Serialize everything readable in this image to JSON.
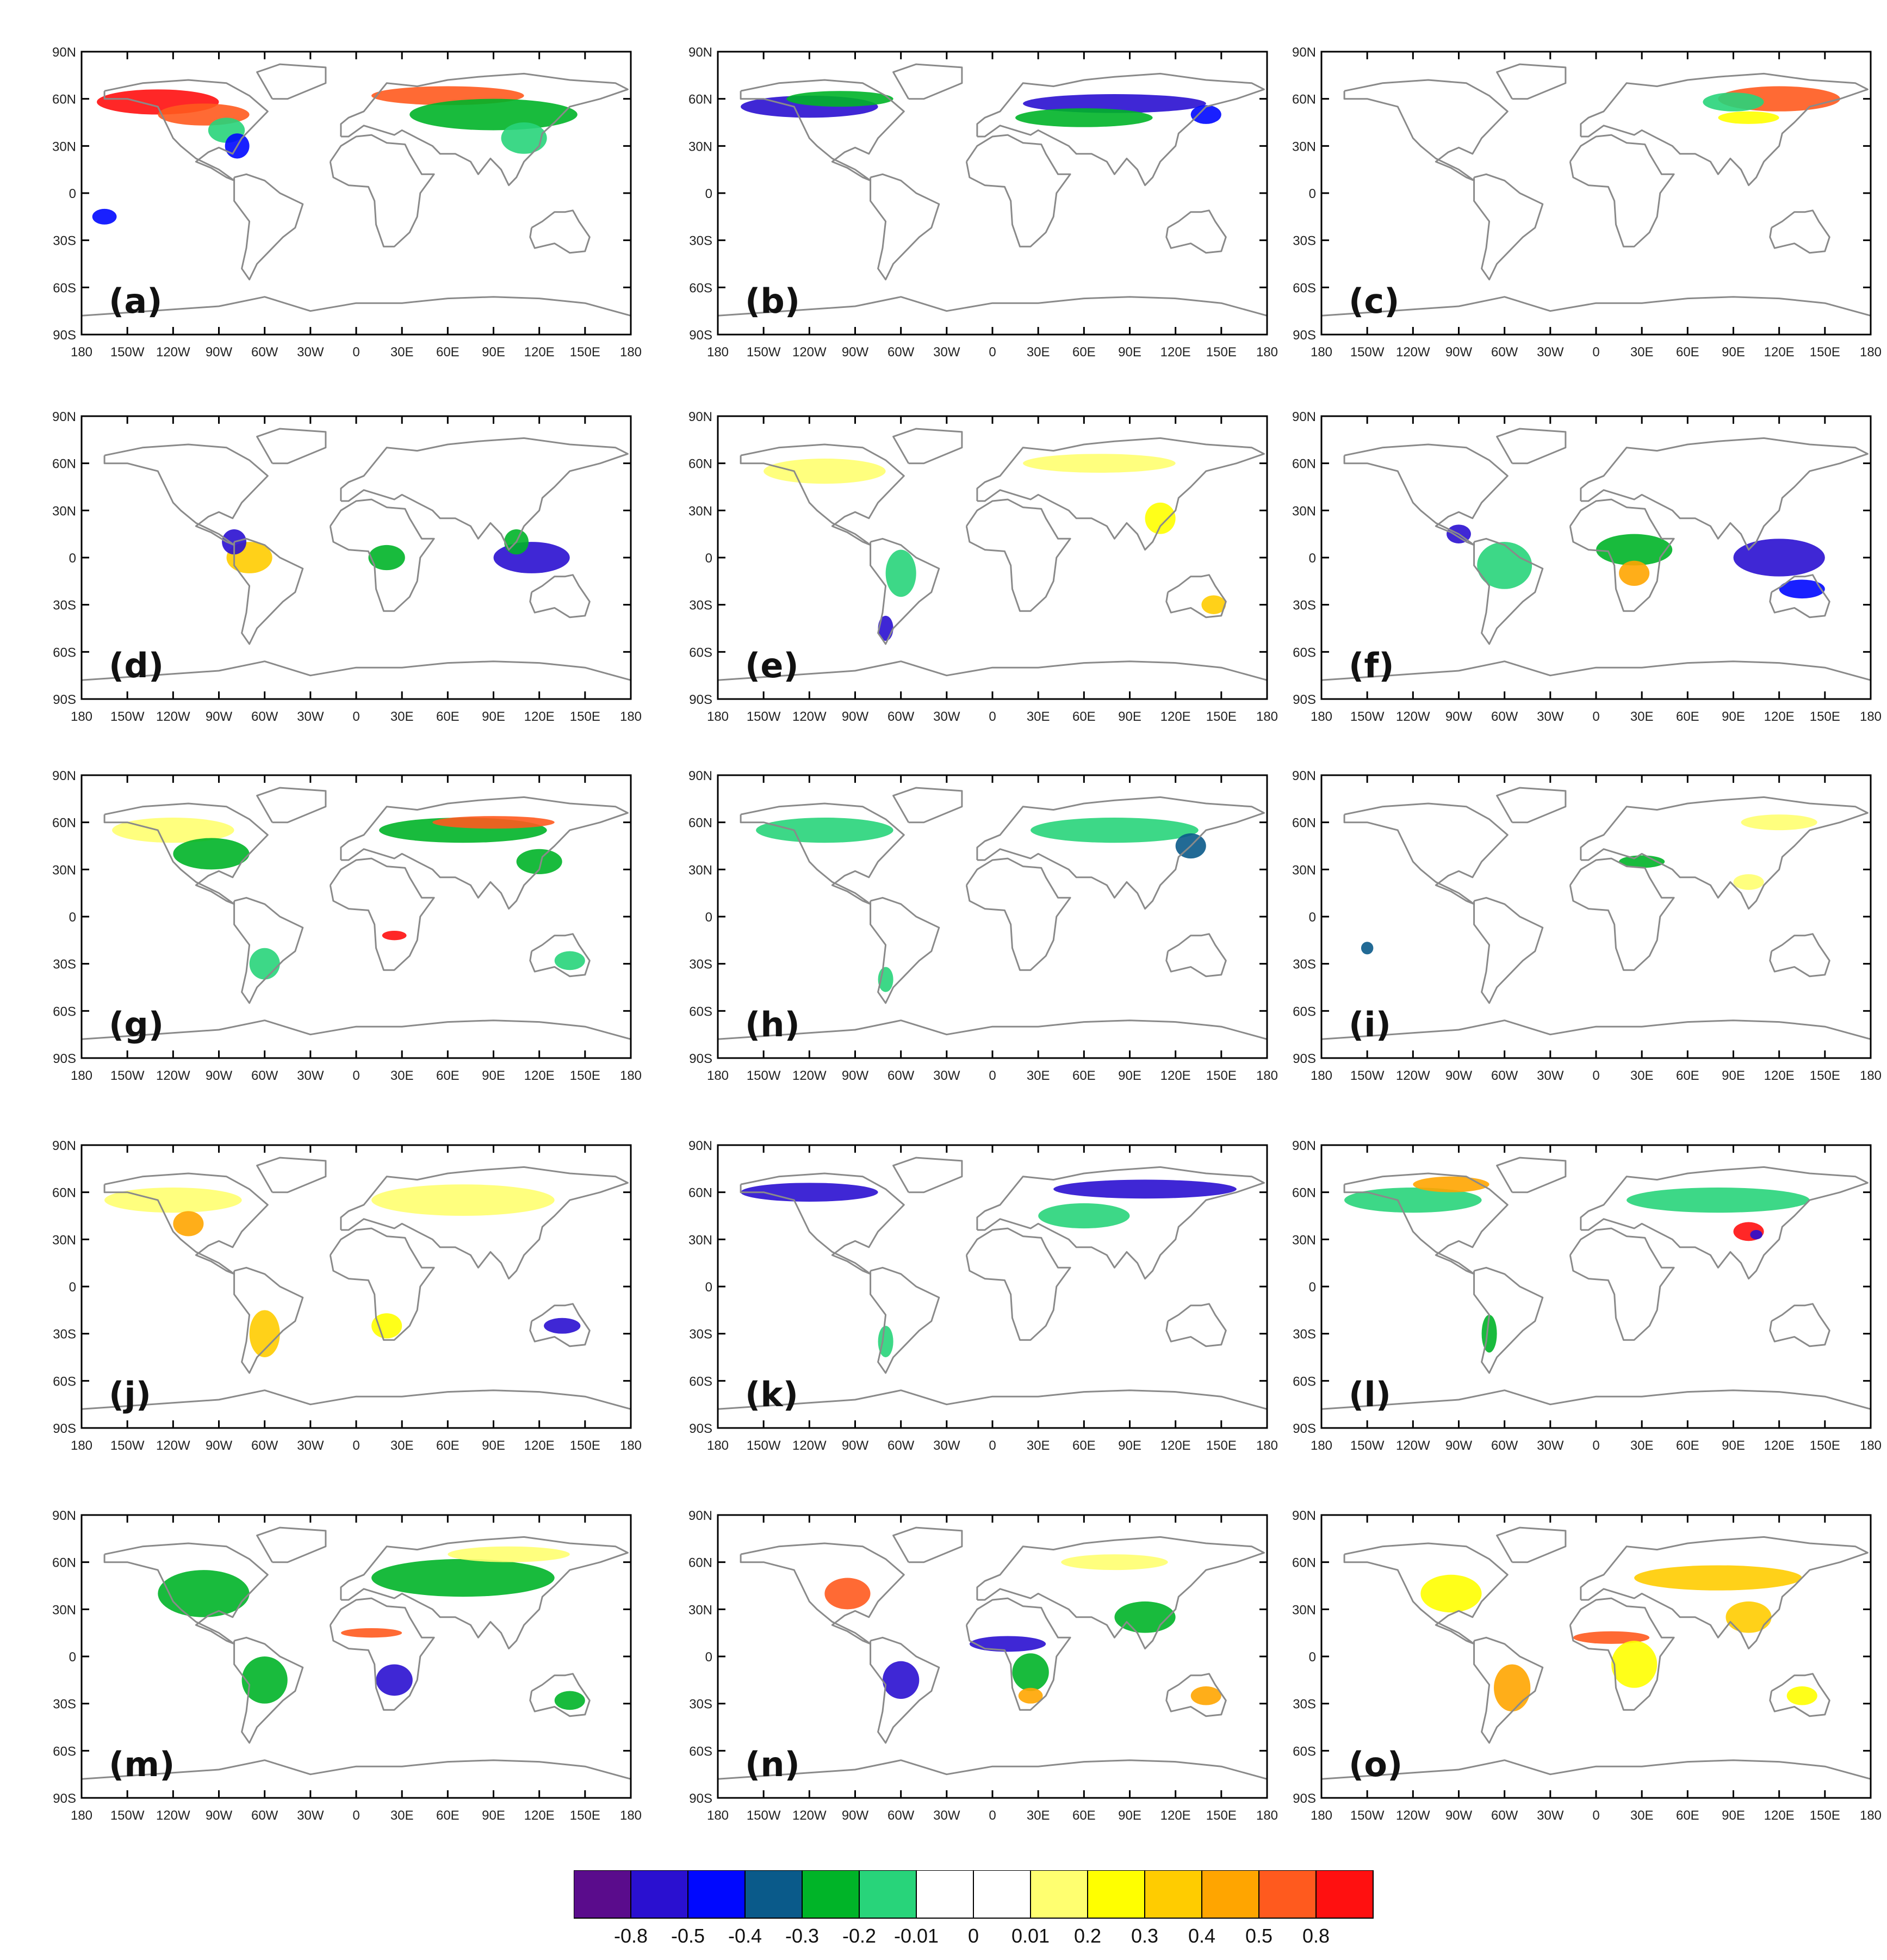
{
  "panels": [
    {
      "label": "(a)",
      "blobs": [
        {
          "lon": -130,
          "lat": 58,
          "rx": 40,
          "ry": 8,
          "c": 13
        },
        {
          "lon": -100,
          "lat": 50,
          "rx": 30,
          "ry": 7,
          "c": 12
        },
        {
          "lon": -85,
          "lat": 40,
          "rx": 12,
          "ry": 8,
          "c": 5
        },
        {
          "lon": -78,
          "lat": 30,
          "rx": 8,
          "ry": 8,
          "c": 2
        },
        {
          "lon": 60,
          "lat": 62,
          "rx": 50,
          "ry": 6,
          "c": 12
        },
        {
          "lon": 90,
          "lat": 50,
          "rx": 55,
          "ry": 10,
          "c": 4
        },
        {
          "lon": 110,
          "lat": 35,
          "rx": 15,
          "ry": 10,
          "c": 5
        },
        {
          "lon": -165,
          "lat": -15,
          "rx": 8,
          "ry": 5,
          "c": 2
        }
      ]
    },
    {
      "label": "(b)",
      "blobs": [
        {
          "lon": -120,
          "lat": 55,
          "rx": 45,
          "ry": 7,
          "c": 1
        },
        {
          "lon": -100,
          "lat": 60,
          "rx": 35,
          "ry": 5,
          "c": 4
        },
        {
          "lon": 80,
          "lat": 57,
          "rx": 60,
          "ry": 6,
          "c": 1
        },
        {
          "lon": 60,
          "lat": 48,
          "rx": 45,
          "ry": 6,
          "c": 4
        },
        {
          "lon": 140,
          "lat": 50,
          "rx": 10,
          "ry": 6,
          "c": 2
        }
      ]
    },
    {
      "label": "(c)",
      "blobs": [
        {
          "lon": 120,
          "lat": 60,
          "rx": 40,
          "ry": 8,
          "c": 12
        },
        {
          "lon": 90,
          "lat": 58,
          "rx": 20,
          "ry": 6,
          "c": 5
        },
        {
          "lon": 100,
          "lat": 48,
          "rx": 20,
          "ry": 4,
          "c": 9
        }
      ]
    },
    {
      "label": "(d)",
      "blobs": [
        {
          "lon": -70,
          "lat": 0,
          "rx": 15,
          "ry": 10,
          "c": 10
        },
        {
          "lon": -80,
          "lat": 10,
          "rx": 8,
          "ry": 8,
          "c": 1
        },
        {
          "lon": 20,
          "lat": 0,
          "rx": 12,
          "ry": 8,
          "c": 4
        },
        {
          "lon": 115,
          "lat": 0,
          "rx": 25,
          "ry": 10,
          "c": 1
        },
        {
          "lon": 105,
          "lat": 10,
          "rx": 8,
          "ry": 8,
          "c": 4
        }
      ]
    },
    {
      "label": "(e)",
      "blobs": [
        {
          "lon": -110,
          "lat": 55,
          "rx": 40,
          "ry": 8,
          "c": 8
        },
        {
          "lon": 70,
          "lat": 60,
          "rx": 50,
          "ry": 6,
          "c": 8
        },
        {
          "lon": 110,
          "lat": 25,
          "rx": 10,
          "ry": 10,
          "c": 9
        },
        {
          "lon": -60,
          "lat": -10,
          "rx": 10,
          "ry": 15,
          "c": 5
        },
        {
          "lon": -70,
          "lat": -45,
          "rx": 5,
          "ry": 8,
          "c": 1
        },
        {
          "lon": 145,
          "lat": -30,
          "rx": 8,
          "ry": 6,
          "c": 10
        }
      ]
    },
    {
      "label": "(f)",
      "blobs": [
        {
          "lon": -60,
          "lat": -5,
          "rx": 18,
          "ry": 15,
          "c": 5
        },
        {
          "lon": 25,
          "lat": 5,
          "rx": 25,
          "ry": 10,
          "c": 4
        },
        {
          "lon": 25,
          "lat": -10,
          "rx": 10,
          "ry": 8,
          "c": 11
        },
        {
          "lon": 120,
          "lat": 0,
          "rx": 30,
          "ry": 12,
          "c": 1
        },
        {
          "lon": 135,
          "lat": -20,
          "rx": 15,
          "ry": 6,
          "c": 2
        },
        {
          "lon": -90,
          "lat": 15,
          "rx": 8,
          "ry": 6,
          "c": 1
        }
      ]
    },
    {
      "label": "(g)",
      "blobs": [
        {
          "lon": -120,
          "lat": 55,
          "rx": 40,
          "ry": 8,
          "c": 8
        },
        {
          "lon": -95,
          "lat": 40,
          "rx": 25,
          "ry": 10,
          "c": 4
        },
        {
          "lon": 70,
          "lat": 55,
          "rx": 55,
          "ry": 8,
          "c": 4
        },
        {
          "lon": 90,
          "lat": 60,
          "rx": 40,
          "ry": 4,
          "c": 12
        },
        {
          "lon": 120,
          "lat": 35,
          "rx": 15,
          "ry": 8,
          "c": 4
        },
        {
          "lon": 25,
          "lat": -12,
          "rx": 8,
          "ry": 3,
          "c": 13
        },
        {
          "lon": -60,
          "lat": -30,
          "rx": 10,
          "ry": 10,
          "c": 5
        },
        {
          "lon": 140,
          "lat": -28,
          "rx": 10,
          "ry": 6,
          "c": 5
        }
      ]
    },
    {
      "label": "(h)",
      "blobs": [
        {
          "lon": -110,
          "lat": 55,
          "rx": 45,
          "ry": 8,
          "c": 5
        },
        {
          "lon": 80,
          "lat": 55,
          "rx": 55,
          "ry": 8,
          "c": 5
        },
        {
          "lon": 130,
          "lat": 45,
          "rx": 10,
          "ry": 8,
          "c": 3
        },
        {
          "lon": -70,
          "lat": -40,
          "rx": 5,
          "ry": 8,
          "c": 5
        }
      ]
    },
    {
      "label": "(i)",
      "blobs": [
        {
          "lon": 120,
          "lat": 60,
          "rx": 25,
          "ry": 5,
          "c": 8
        },
        {
          "lon": 100,
          "lat": 22,
          "rx": 10,
          "ry": 5,
          "c": 8
        },
        {
          "lon": 30,
          "lat": 35,
          "rx": 15,
          "ry": 4,
          "c": 4
        },
        {
          "lon": -150,
          "lat": -20,
          "rx": 4,
          "ry": 4,
          "c": 3
        }
      ]
    },
    {
      "label": "(j)",
      "blobs": [
        {
          "lon": -120,
          "lat": 55,
          "rx": 45,
          "ry": 8,
          "c": 8
        },
        {
          "lon": -110,
          "lat": 40,
          "rx": 10,
          "ry": 8,
          "c": 11
        },
        {
          "lon": 70,
          "lat": 55,
          "rx": 60,
          "ry": 10,
          "c": 8
        },
        {
          "lon": -60,
          "lat": -30,
          "rx": 10,
          "ry": 15,
          "c": 10
        },
        {
          "lon": 20,
          "lat": -25,
          "rx": 10,
          "ry": 8,
          "c": 9
        },
        {
          "lon": 135,
          "lat": -25,
          "rx": 12,
          "ry": 5,
          "c": 1
        }
      ]
    },
    {
      "label": "(k)",
      "blobs": [
        {
          "lon": -120,
          "lat": 60,
          "rx": 45,
          "ry": 6,
          "c": 1
        },
        {
          "lon": 100,
          "lat": 62,
          "rx": 60,
          "ry": 6,
          "c": 1
        },
        {
          "lon": 60,
          "lat": 45,
          "rx": 30,
          "ry": 8,
          "c": 5
        },
        {
          "lon": -70,
          "lat": -35,
          "rx": 5,
          "ry": 10,
          "c": 5
        }
      ]
    },
    {
      "label": "(l)",
      "blobs": [
        {
          "lon": -120,
          "lat": 55,
          "rx": 45,
          "ry": 8,
          "c": 5
        },
        {
          "lon": -95,
          "lat": 65,
          "rx": 25,
          "ry": 5,
          "c": 11
        },
        {
          "lon": 80,
          "lat": 55,
          "rx": 60,
          "ry": 8,
          "c": 5
        },
        {
          "lon": 100,
          "lat": 35,
          "rx": 10,
          "ry": 6,
          "c": 13
        },
        {
          "lon": 105,
          "lat": 33,
          "rx": 4,
          "ry": 3,
          "c": 1
        },
        {
          "lon": -70,
          "lat": -30,
          "rx": 5,
          "ry": 12,
          "c": 4
        }
      ]
    },
    {
      "label": "(m)",
      "blobs": [
        {
          "lon": -100,
          "lat": 40,
          "rx": 30,
          "ry": 15,
          "c": 4
        },
        {
          "lon": 70,
          "lat": 50,
          "rx": 60,
          "ry": 12,
          "c": 4
        },
        {
          "lon": 100,
          "lat": 65,
          "rx": 40,
          "ry": 5,
          "c": 8
        },
        {
          "lon": -60,
          "lat": -15,
          "rx": 15,
          "ry": 15,
          "c": 4
        },
        {
          "lon": 25,
          "lat": -15,
          "rx": 12,
          "ry": 10,
          "c": 1
        },
        {
          "lon": 10,
          "lat": 15,
          "rx": 20,
          "ry": 3,
          "c": 12
        },
        {
          "lon": 140,
          "lat": -28,
          "rx": 10,
          "ry": 6,
          "c": 4
        }
      ]
    },
    {
      "label": "(n)",
      "blobs": [
        {
          "lon": -95,
          "lat": 40,
          "rx": 15,
          "ry": 10,
          "c": 12
        },
        {
          "lon": 10,
          "lat": 8,
          "rx": 25,
          "ry": 5,
          "c": 1
        },
        {
          "lon": 25,
          "lat": -10,
          "rx": 12,
          "ry": 12,
          "c": 4
        },
        {
          "lon": 25,
          "lat": -25,
          "rx": 8,
          "ry": 5,
          "c": 11
        },
        {
          "lon": -60,
          "lat": -15,
          "rx": 12,
          "ry": 12,
          "c": 1
        },
        {
          "lon": 100,
          "lat": 25,
          "rx": 20,
          "ry": 10,
          "c": 4
        },
        {
          "lon": 80,
          "lat": 60,
          "rx": 35,
          "ry": 5,
          "c": 8
        },
        {
          "lon": 140,
          "lat": -25,
          "rx": 10,
          "ry": 6,
          "c": 11
        }
      ]
    },
    {
      "label": "(o)",
      "blobs": [
        {
          "lon": -95,
          "lat": 40,
          "rx": 20,
          "ry": 12,
          "c": 9
        },
        {
          "lon": 80,
          "lat": 50,
          "rx": 55,
          "ry": 8,
          "c": 10
        },
        {
          "lon": 10,
          "lat": 12,
          "rx": 25,
          "ry": 4,
          "c": 12
        },
        {
          "lon": 25,
          "lat": -5,
          "rx": 15,
          "ry": 15,
          "c": 9
        },
        {
          "lon": -55,
          "lat": -20,
          "rx": 12,
          "ry": 15,
          "c": 11
        },
        {
          "lon": 100,
          "lat": 25,
          "rx": 15,
          "ry": 10,
          "c": 10
        },
        {
          "lon": 135,
          "lat": -25,
          "rx": 10,
          "ry": 6,
          "c": 9
        }
      ]
    }
  ],
  "lat_ticks": [
    "90N",
    "60N",
    "30N",
    "0",
    "30S",
    "60S",
    "90S"
  ],
  "lon_ticks": [
    "180",
    "150W",
    "120W",
    "90W",
    "60W",
    "30W",
    "0",
    "30E",
    "60E",
    "90E",
    "120E",
    "150E",
    "180"
  ],
  "colorbar": {
    "labels": [
      "-0.8",
      "-0.5",
      "-0.4",
      "-0.3",
      "-0.2",
      "-0.01",
      "0",
      "0.01",
      "0.2",
      "0.3",
      "0.4",
      "0.5",
      "0.8"
    ],
    "colors": [
      "#5a0c8c",
      "#2a10d0",
      "#0008ff",
      "#0a5a8a",
      "#00b428",
      "#28d47a",
      "#ffffff",
      "#ffffff",
      "#ffff70",
      "#ffff00",
      "#ffcc00",
      "#ffa500",
      "#ff5a1e",
      "#ff1010"
    ]
  }
}
